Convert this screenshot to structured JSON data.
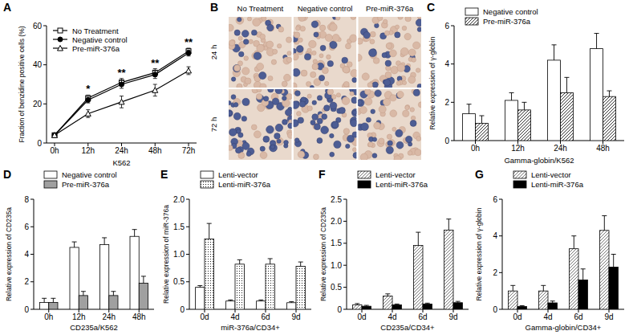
{
  "chart_data": [
    {
      "type": "line",
      "title": "A",
      "x_label": "K562",
      "y_label": "Fraction of benzidine positive cells (%)",
      "categories": [
        "0h",
        "12h",
        "24h",
        "48h",
        "72h"
      ],
      "ylim": [
        0,
        60
      ],
      "yticks": [
        0,
        20,
        40,
        60
      ],
      "grid": false,
      "legend": "upper left",
      "series": [
        {
          "name": "No Treatment",
          "color": "#000000",
          "marker": "square-open",
          "values": [
            4,
            23,
            31,
            36,
            47
          ],
          "errors": [
            0.8,
            1.5,
            2,
            2,
            1.5
          ]
        },
        {
          "name": "Negative control",
          "color": "#000000",
          "marker": "circle",
          "values": [
            4,
            22,
            30,
            35,
            46
          ],
          "errors": [
            0.8,
            1.5,
            2,
            2,
            1.5
          ]
        },
        {
          "name": "Pre-miR-376a",
          "color": "#000000",
          "marker": "triangle-open",
          "values": [
            4,
            15,
            21,
            27,
            37
          ],
          "errors": [
            0.8,
            2,
            3,
            3,
            2
          ]
        }
      ],
      "annotations": [
        {
          "text": "*",
          "category": "12h"
        },
        {
          "text": "**",
          "category": "24h"
        },
        {
          "text": "**",
          "category": "48h"
        },
        {
          "text": "**",
          "category": "72h"
        }
      ]
    },
    {
      "type": "image_grid",
      "title": "B",
      "columns": [
        "No Treatment",
        "Negative control",
        "Pre-miR-376a"
      ],
      "rows": [
        "24 h",
        "72 h"
      ]
    },
    {
      "type": "bar",
      "title": "C",
      "x_label": "Gamma-globin/K562",
      "y_label": "Relative expression of γ-globin",
      "categories": [
        "0h",
        "12h",
        "24h",
        "48h"
      ],
      "ylim": [
        0,
        6
      ],
      "yticks": [
        0,
        2,
        4,
        6
      ],
      "grid": false,
      "legend": "top",
      "series": [
        {
          "name": "Negative control",
          "color": "#ffffff",
          "marker": "solid",
          "values": [
            1.4,
            2.1,
            4.2,
            4.8
          ],
          "errors": [
            0.5,
            0.4,
            0.8,
            0.8
          ]
        },
        {
          "name": "Pre-miR-376a",
          "color": "#000000",
          "marker": "hatch",
          "values": [
            0.9,
            1.6,
            2.5,
            2.3
          ],
          "errors": [
            0.4,
            0.4,
            0.8,
            0.3
          ]
        }
      ]
    },
    {
      "type": "bar",
      "title": "D",
      "x_label": "CD235a/K562",
      "y_label": "Relative expression of CD235a",
      "categories": [
        "0h",
        "12h",
        "24h",
        "48h"
      ],
      "ylim": [
        0,
        8
      ],
      "yticks": [
        0,
        2,
        4,
        6,
        8
      ],
      "grid": false,
      "legend": "top",
      "series": [
        {
          "name": "Negative control",
          "color": "#ffffff",
          "marker": "solid",
          "values": [
            0.5,
            4.5,
            4.7,
            5.3
          ],
          "errors": [
            0.3,
            0.4,
            0.5,
            0.5
          ]
        },
        {
          "name": "Pre-miR-376a",
          "color": "#a0a0a0",
          "marker": "solid",
          "values": [
            0.5,
            1.0,
            1.0,
            1.9
          ],
          "errors": [
            0.3,
            0.3,
            0.3,
            0.5
          ]
        }
      ]
    },
    {
      "type": "bar",
      "title": "E",
      "x_label": "miR-376a/CD34+",
      "y_label": "Relative expression of miR-376a",
      "categories": [
        "0d",
        "4d",
        "6d",
        "9d"
      ],
      "ylim": [
        0,
        2
      ],
      "yticks": [
        0,
        0.5,
        {
          "value": 1,
          "label": "1.0"
        },
        1.5,
        {
          "value": 2,
          "label": "2.0"
        }
      ],
      "grid": false,
      "legend": "top",
      "series": [
        {
          "name": "Lenti-vector",
          "color": "#ffffff",
          "marker": "solid",
          "values": [
            0.4,
            0.15,
            0.15,
            0.12
          ],
          "errors": [
            0.03,
            0.02,
            0.02,
            0.02
          ]
        },
        {
          "name": "Lenti-miR-376a",
          "color": "#000000",
          "marker": "dots",
          "values": [
            1.28,
            0.82,
            0.82,
            0.78
          ],
          "errors": [
            0.28,
            0.08,
            0.1,
            0.08
          ]
        }
      ]
    },
    {
      "type": "bar",
      "title": "F",
      "x_label": "CD235a/CD34+",
      "y_label": "Relative expression of CD235a",
      "categories": [
        "0d",
        "4d",
        "6d",
        "9d"
      ],
      "ylim": [
        0,
        2.5
      ],
      "yticks": [
        0,
        0.5,
        {
          "value": 1,
          "label": "1.0"
        },
        1.5,
        {
          "value": 2,
          "label": "2.0"
        },
        2.5
      ],
      "grid": false,
      "legend": "top",
      "series": [
        {
          "name": "Lenti-vector",
          "color": "#555555",
          "marker": "hatch",
          "values": [
            0.1,
            0.3,
            1.45,
            1.8
          ],
          "errors": [
            0.03,
            0.05,
            0.3,
            0.25
          ]
        },
        {
          "name": "Lenti-miR-376a",
          "color": "#000000",
          "marker": "solid",
          "values": [
            0.07,
            0.1,
            0.12,
            0.15
          ],
          "errors": [
            0.02,
            0.02,
            0.02,
            0.03
          ]
        }
      ]
    },
    {
      "type": "bar",
      "title": "G",
      "x_label": "Gamma-globin/CD34+",
      "y_label": "Relative expression of γ-globin",
      "categories": [
        "0d",
        "4d",
        "6d",
        "9d"
      ],
      "ylim": [
        0,
        6
      ],
      "yticks": [
        0,
        2,
        4,
        6
      ],
      "grid": false,
      "legend": "top",
      "series": [
        {
          "name": "Lenti-vector",
          "color": "#555555",
          "marker": "hatch",
          "values": [
            1.0,
            1.0,
            3.3,
            4.3
          ],
          "errors": [
            0.3,
            0.3,
            0.7,
            0.8
          ]
        },
        {
          "name": "Lenti-miR-376a",
          "color": "#000000",
          "marker": "solid",
          "values": [
            0.15,
            0.35,
            1.6,
            2.3
          ],
          "errors": [
            0.05,
            0.1,
            0.6,
            0.7
          ]
        }
      ]
    }
  ]
}
